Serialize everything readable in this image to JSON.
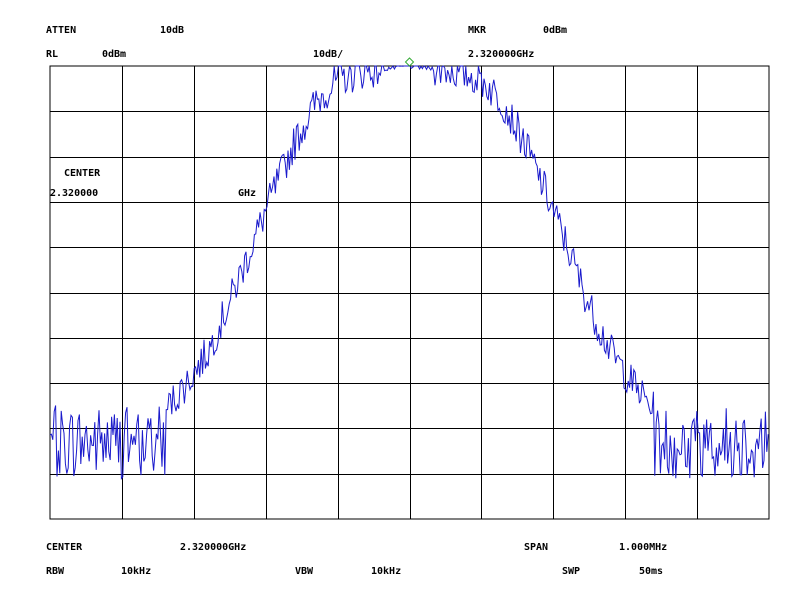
{
  "header": {
    "atten_label": "ATTEN",
    "atten_value": "10dB",
    "mkr_label": "MKR",
    "mkr_value": "0dBm",
    "rl_label": "RL",
    "rl_value": "0dBm",
    "scale_value": "10dB/",
    "mkr_freq": "2.320000GHz"
  },
  "overlay": {
    "center_label": "CENTER",
    "center_value": "2.320000",
    "center_unit": "GHz"
  },
  "footer": {
    "center_label": "CENTER",
    "center_value": "2.320000GHz",
    "span_label": "SPAN",
    "span_value": "1.000MHz",
    "rbw_label": "RBW",
    "rbw_value": "10kHz",
    "vbw_label": "VBW",
    "vbw_value": "10kHz",
    "swp_label": "SWP",
    "swp_value": "50ms"
  },
  "colors": {
    "trace": "#1a1acc",
    "marker": "#33aa33",
    "grid": "#000000"
  },
  "chart_data": {
    "type": "line",
    "grid": true,
    "x_divisions": 10,
    "y_divisions": 10,
    "xlim": [
      2.3195,
      2.3205
    ],
    "ylim": [
      -100,
      0
    ],
    "x_unit": "GHz",
    "y_unit": "dBm",
    "noise_floor_db": -83,
    "noise_range_db": [
      -93,
      -75
    ],
    "peak": {
      "x": 2.32,
      "y": 0
    },
    "marker": {
      "x": 2.32,
      "y": 0
    },
    "peak_profile": [
      [
        2.31966,
        -76
      ],
      [
        2.31969,
        -70
      ],
      [
        2.31972,
        -63
      ],
      [
        2.31975,
        -52
      ],
      [
        2.31978,
        -40
      ],
      [
        2.31981,
        -28
      ],
      [
        2.31984,
        -17
      ],
      [
        2.31987,
        -8
      ],
      [
        2.3199,
        -3
      ],
      [
        2.31994,
        -1
      ],
      [
        2.32,
        0
      ],
      [
        2.32006,
        -1
      ],
      [
        2.3201,
        -3
      ],
      [
        2.32013,
        -8
      ],
      [
        2.32016,
        -17
      ],
      [
        2.32019,
        -28
      ],
      [
        2.32022,
        -40
      ],
      [
        2.32025,
        -53
      ],
      [
        2.32028,
        -63
      ],
      [
        2.32031,
        -70
      ],
      [
        2.32034,
        -76
      ]
    ]
  }
}
